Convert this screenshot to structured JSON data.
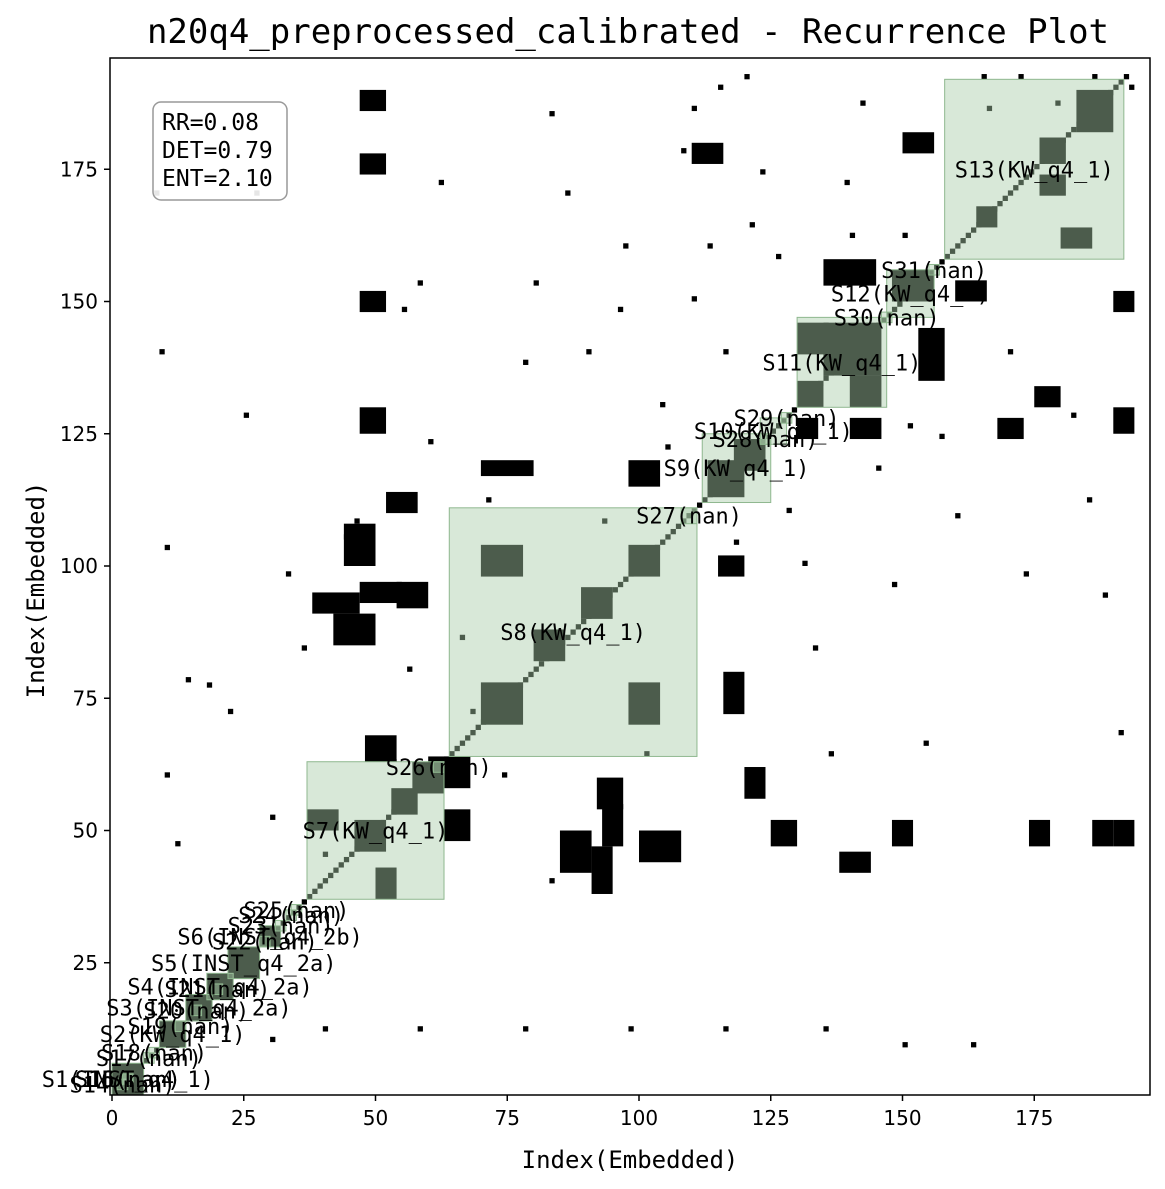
{
  "chart_data": {
    "type": "heatmap",
    "title": "n20q4_preprocessed_calibrated - Recurrence Plot",
    "xlabel": "Index(Embedded)",
    "ylabel": "Index(Embedded)",
    "xlim": [
      0,
      196
    ],
    "ylim": [
      0,
      196
    ],
    "xticks": [
      0,
      25,
      50,
      75,
      100,
      125,
      150,
      175
    ],
    "yticks": [
      25,
      50,
      75,
      100,
      125,
      150,
      175
    ],
    "grid": false,
    "stats": [
      "RR=0.08",
      "DET=0.79",
      "ENT=2.10"
    ],
    "colors": {
      "recurrence": "#000000",
      "region_fill": "#a9cca9",
      "region_edge": "#8fb88f"
    },
    "segments": [
      {
        "label": "S1(INST_q4_1)",
        "start": 0,
        "end": 6
      },
      {
        "label": "S2(KW_q4_1)",
        "start": 9,
        "end": 14
      },
      {
        "label": "S3(INST_q4_2a)",
        "start": 14,
        "end": 19
      },
      {
        "label": "S4(INST_q4_2a)",
        "start": 18,
        "end": 23
      },
      {
        "label": "S5(INST_q4_2a)",
        "start": 22,
        "end": 28
      },
      {
        "label": "S6(INST_q4_2b)",
        "start": 28,
        "end": 32
      },
      {
        "label": "S7(KW_q4_1)",
        "start": 37,
        "end": 63
      },
      {
        "label": "S8(KW_q4_1)",
        "start": 64,
        "end": 111
      },
      {
        "label": "S9(KW_q4_1)",
        "start": 112,
        "end": 125
      },
      {
        "label": "S10(KW_q4_1)",
        "start": 123,
        "end": 128
      },
      {
        "label": "S11(KW_q4_1)",
        "start": 130,
        "end": 147
      },
      {
        "label": "S12(KW_q4_1)",
        "start": 147,
        "end": 156
      },
      {
        "label": "S13(KW_q4_1)",
        "start": 158,
        "end": 192
      },
      {
        "label": "S14(nan)",
        "start": 1,
        "end": 3
      },
      {
        "label": "S15(nan)",
        "start": 2,
        "end": 4
      },
      {
        "label": "S16(nan)",
        "start": 2,
        "end": 4
      },
      {
        "label": "S17(nan)",
        "start": 6,
        "end": 8
      },
      {
        "label": "S18(nan)",
        "start": 7,
        "end": 9
      },
      {
        "label": "S19(nan)",
        "start": 12,
        "end": 14
      },
      {
        "label": "S20(nan)",
        "start": 15,
        "end": 17
      },
      {
        "label": "S21(nan)",
        "start": 19,
        "end": 21
      },
      {
        "label": "S22(nan)",
        "start": 28,
        "end": 30
      },
      {
        "label": "S23(nan)",
        "start": 31,
        "end": 33
      },
      {
        "label": "S24(nan)",
        "start": 33,
        "end": 35
      },
      {
        "label": "S25(nan)",
        "start": 34,
        "end": 36
      },
      {
        "label": "S26(nan)",
        "start": 61,
        "end": 63
      },
      {
        "label": "S27(nan)",
        "start": 108,
        "end": 111
      },
      {
        "label": "S28(nan)",
        "start": 123,
        "end": 125
      },
      {
        "label": "S29(nan)",
        "start": 127,
        "end": 129
      },
      {
        "label": "S30(nan)",
        "start": 146,
        "end": 148
      },
      {
        "label": "S31(nan)",
        "start": 155,
        "end": 157
      }
    ],
    "blocks": [
      {
        "x": [
          0,
          6
        ],
        "y": [
          0,
          6
        ]
      },
      {
        "x": [
          9,
          14
        ],
        "y": [
          9,
          14
        ]
      },
      {
        "x": [
          14,
          19
        ],
        "y": [
          14,
          19
        ]
      },
      {
        "x": [
          18,
          23
        ],
        "y": [
          18,
          23
        ]
      },
      {
        "x": [
          22,
          28
        ],
        "y": [
          22,
          28
        ]
      },
      {
        "x": [
          28,
          32
        ],
        "y": [
          28,
          32
        ]
      },
      {
        "x": [
          46,
          52
        ],
        "y": [
          46,
          52
        ]
      },
      {
        "x": [
          53,
          58
        ],
        "y": [
          53,
          58
        ]
      },
      {
        "x": [
          57,
          63
        ],
        "y": [
          57,
          63
        ]
      },
      {
        "x": [
          70,
          78
        ],
        "y": [
          70,
          78
        ]
      },
      {
        "x": [
          70,
          78
        ],
        "y": [
          98,
          104
        ]
      },
      {
        "x": [
          98,
          104
        ],
        "y": [
          70,
          78
        ]
      },
      {
        "x": [
          89,
          95
        ],
        "y": [
          90,
          96
        ]
      },
      {
        "x": [
          98,
          104
        ],
        "y": [
          98,
          104
        ]
      },
      {
        "x": [
          80,
          86
        ],
        "y": [
          82,
          88
        ]
      },
      {
        "x": [
          113,
          120
        ],
        "y": [
          113,
          120
        ]
      },
      {
        "x": [
          118,
          124
        ],
        "y": [
          118,
          124
        ]
      },
      {
        "x": [
          135,
          146
        ],
        "y": [
          136,
          146
        ]
      },
      {
        "x": [
          130,
          135
        ],
        "y": [
          130,
          135
        ]
      },
      {
        "x": [
          148,
          156
        ],
        "y": [
          150,
          156
        ]
      },
      {
        "x": [
          164,
          168
        ],
        "y": [
          164,
          168
        ]
      },
      {
        "x": [
          183,
          190
        ],
        "y": [
          182,
          190
        ]
      },
      {
        "x": [
          176,
          181
        ],
        "y": [
          176,
          181
        ]
      },
      {
        "x": [
          48,
          54
        ],
        "y": [
          63,
          68
        ]
      },
      {
        "x": [
          63,
          68
        ],
        "y": [
          48,
          54
        ]
      },
      {
        "x": [
          37,
          43
        ],
        "y": [
          50,
          54
        ]
      },
      {
        "x": [
          50,
          54
        ],
        "y": [
          37,
          43
        ]
      },
      {
        "x": [
          92,
          97
        ],
        "y": [
          54,
          60
        ]
      },
      {
        "x": [
          54,
          60
        ],
        "y": [
          92,
          97
        ]
      },
      {
        "x": [
          47,
          55
        ],
        "y": [
          93,
          97
        ]
      },
      {
        "x": [
          93,
          97
        ],
        "y": [
          47,
          55
        ]
      },
      {
        "x": [
          140,
          146
        ],
        "y": [
          130,
          136
        ]
      },
      {
        "x": [
          130,
          136
        ],
        "y": [
          140,
          146
        ]
      },
      {
        "x": [
          153,
          158
        ],
        "y": [
          135,
          145
        ]
      },
      {
        "x": [
          135,
          145
        ],
        "y": [
          153,
          158
        ]
      },
      {
        "x": [
          47,
          52
        ],
        "y": [
          125,
          130
        ]
      },
      {
        "x": [
          47,
          52
        ],
        "y": [
          148,
          152
        ]
      },
      {
        "x": [
          47,
          52
        ],
        "y": [
          186,
          190
        ]
      },
      {
        "x": [
          47,
          52
        ],
        "y": [
          174,
          178
        ]
      },
      {
        "x": [
          125,
          130
        ],
        "y": [
          47,
          52
        ]
      },
      {
        "x": [
          148,
          152
        ],
        "y": [
          47,
          52
        ]
      },
      {
        "x": [
          174,
          178
        ],
        "y": [
          47,
          52
        ]
      },
      {
        "x": [
          186,
          190
        ],
        "y": [
          47,
          52
        ]
      },
      {
        "x": [
          190,
          194
        ],
        "y": [
          47,
          52
        ]
      },
      {
        "x": [
          190,
          194
        ],
        "y": [
          125,
          130
        ]
      },
      {
        "x": [
          190,
          194
        ],
        "y": [
          148,
          152
        ]
      },
      {
        "x": [
          120,
          124
        ],
        "y": [
          56,
          62
        ]
      },
      {
        "x": [
          116,
          120
        ],
        "y": [
          72,
          80
        ]
      },
      {
        "x": [
          130,
          134
        ],
        "y": [
          124,
          128
        ]
      },
      {
        "x": [
          140,
          146
        ],
        "y": [
          124,
          128
        ]
      },
      {
        "x": [
          168,
          173
        ],
        "y": [
          124,
          128
        ]
      },
      {
        "x": [
          175,
          180
        ],
        "y": [
          130,
          134
        ]
      },
      {
        "x": [
          176,
          181
        ],
        "y": [
          170,
          174
        ]
      },
      {
        "x": [
          150,
          156
        ],
        "y": [
          178,
          182
        ]
      },
      {
        "x": [
          110,
          116
        ],
        "y": [
          176,
          180
        ]
      },
      {
        "x": [
          52,
          58
        ],
        "y": [
          110,
          114
        ]
      },
      {
        "x": [
          70,
          80
        ],
        "y": [
          117,
          120
        ]
      },
      {
        "x": [
          115,
          120
        ],
        "y": [
          98,
          102
        ]
      },
      {
        "x": [
          98,
          104
        ],
        "y": [
          115,
          120
        ]
      },
      {
        "x": [
          38,
          47
        ],
        "y": [
          91,
          95
        ]
      },
      {
        "x": [
          91,
          95
        ],
        "y": [
          38,
          47
        ]
      },
      {
        "x": [
          60,
          68
        ],
        "y": [
          58,
          64
        ]
      },
      {
        "x": [
          85,
          91
        ],
        "y": [
          42,
          50
        ]
      },
      {
        "x": [
          42,
          50
        ],
        "y": [
          85,
          91
        ]
      },
      {
        "x": [
          100,
          108
        ],
        "y": [
          44,
          50
        ]
      },
      {
        "x": [
          44,
          50
        ],
        "y": [
          100,
          108
        ]
      },
      {
        "x": [
          138,
          144
        ],
        "y": [
          42,
          46
        ]
      },
      {
        "x": [
          160,
          166
        ],
        "y": [
          150,
          154
        ]
      },
      {
        "x": [
          180,
          186
        ],
        "y": [
          160,
          164
        ]
      }
    ],
    "scatter_points": [
      [
        10,
        11
      ],
      [
        10,
        60
      ],
      [
        10,
        103
      ],
      [
        8,
        170
      ],
      [
        9,
        140
      ],
      [
        12,
        47
      ],
      [
        14,
        78
      ],
      [
        18,
        77
      ],
      [
        22,
        72
      ],
      [
        30,
        52
      ],
      [
        33,
        98
      ],
      [
        36,
        84
      ],
      [
        40,
        45
      ],
      [
        44,
        105
      ],
      [
        46,
        108
      ],
      [
        55,
        148
      ],
      [
        58,
        153
      ],
      [
        60,
        123
      ],
      [
        62,
        172
      ],
      [
        66,
        86
      ],
      [
        68,
        72
      ],
      [
        71,
        112
      ],
      [
        74,
        60
      ],
      [
        78,
        138
      ],
      [
        80,
        153
      ],
      [
        83,
        185
      ],
      [
        86,
        170
      ],
      [
        90,
        140
      ],
      [
        93,
        108
      ],
      [
        97,
        160
      ],
      [
        101,
        64
      ],
      [
        105,
        122
      ],
      [
        108,
        178
      ],
      [
        110,
        150
      ],
      [
        113,
        160
      ],
      [
        116,
        140
      ],
      [
        118,
        104
      ],
      [
        120,
        192
      ],
      [
        123,
        174
      ],
      [
        126,
        158
      ],
      [
        128,
        110
      ],
      [
        131,
        100
      ],
      [
        133,
        84
      ],
      [
        136,
        64
      ],
      [
        139,
        172
      ],
      [
        142,
        187
      ],
      [
        145,
        118
      ],
      [
        148,
        96
      ],
      [
        151,
        126
      ],
      [
        154,
        66
      ],
      [
        157,
        124
      ],
      [
        160,
        109
      ],
      [
        163,
        9
      ],
      [
        166,
        186
      ],
      [
        170,
        140
      ],
      [
        173,
        98
      ],
      [
        176,
        172
      ],
      [
        179,
        187
      ],
      [
        182,
        128
      ],
      [
        185,
        112
      ],
      [
        188,
        94
      ],
      [
        191,
        68
      ],
      [
        193,
        190
      ],
      [
        30,
        10
      ],
      [
        40,
        12
      ],
      [
        58,
        12
      ],
      [
        78,
        12
      ],
      [
        98,
        12
      ],
      [
        116,
        12
      ],
      [
        135,
        12
      ],
      [
        150,
        9
      ],
      [
        25,
        128
      ],
      [
        27,
        170
      ],
      [
        56,
        80
      ],
      [
        83,
        40
      ],
      [
        96,
        148
      ],
      [
        104,
        130
      ],
      [
        110,
        186
      ],
      [
        115,
        190
      ],
      [
        121,
        164
      ],
      [
        140,
        162
      ],
      [
        150,
        162
      ],
      [
        165,
        192
      ],
      [
        172,
        192
      ],
      [
        186,
        192
      ]
    ]
  }
}
